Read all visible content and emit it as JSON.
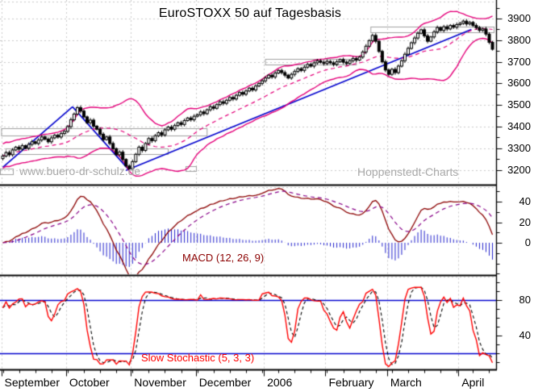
{
  "title": "EuroSTOXX 50 auf Tagesbasis",
  "watermarks": {
    "left": "www.buero-dr-schulz.de",
    "right": "Hoppenstedt-Charts"
  },
  "colors": {
    "band": "#e4007a",
    "trendline": "#0000cd",
    "grid": "#c9c9c9",
    "box_border": "#a0a0a0",
    "candle_up_fill": "#ffffff",
    "candle_down_fill": "#000000",
    "candle_border": "#000000",
    "macd_line": "#8b0000",
    "macd_signal": "#880088",
    "macd_histogram": "#2222cc",
    "stoch_k": "#ff0000",
    "stoch_d": "#000000",
    "stoch_reference": "#0000cd",
    "axis": "#000000",
    "watermark": "#a8a8a8"
  },
  "chart_data": {
    "type": "candlestick",
    "title": "EuroSTOXX 50 auf Tagesbasis",
    "x_axis": {
      "months": [
        {
          "label": "September",
          "day": 0
        },
        {
          "label": "October",
          "day": 20
        },
        {
          "label": "November",
          "day": 40
        },
        {
          "label": "December",
          "day": 60
        },
        {
          "label": "2006",
          "day": 81
        },
        {
          "label": "February",
          "day": 100
        },
        {
          "label": "March",
          "day": 119
        },
        {
          "label": "April",
          "day": 141
        }
      ],
      "minor_tick_every_days": 5
    },
    "price_panel": {
      "y_ticks": [
        3900,
        3800,
        3700,
        3600,
        3500,
        3400,
        3300,
        3200
      ],
      "y_minor_tick_step": 50,
      "grid": "horizontal dashed at each 100, vertical dashed at month starts",
      "close": [
        3264,
        3280,
        3270,
        3292,
        3305,
        3296,
        3312,
        3300,
        3318,
        3330,
        3322,
        3338,
        3352,
        3342,
        3330,
        3348,
        3360,
        3352,
        3368,
        3378,
        3400,
        3432,
        3458,
        3488,
        3472,
        3445,
        3418,
        3430,
        3402,
        3388,
        3365,
        3340,
        3352,
        3322,
        3298,
        3270,
        3282,
        3248,
        3218,
        3205,
        3238,
        3272,
        3305,
        3290,
        3322,
        3345,
        3335,
        3358,
        3372,
        3362,
        3385,
        3398,
        3388,
        3405,
        3418,
        3410,
        3428,
        3440,
        3432,
        3448,
        3455,
        3468,
        3460,
        3478,
        3492,
        3485,
        3502,
        3515,
        3508,
        3522,
        3535,
        3528,
        3545,
        3558,
        3550,
        3565,
        3578,
        3570,
        3588,
        3600,
        3612,
        3625,
        3638,
        3630,
        3648,
        3660,
        3650,
        3638,
        3625,
        3642,
        3655,
        3668,
        3660,
        3675,
        3688,
        3680,
        3695,
        3705,
        3698,
        3692,
        3702,
        3695,
        3688,
        3700,
        3710,
        3698,
        3692,
        3705,
        3715,
        3708,
        3722,
        3745,
        3772,
        3798,
        3822,
        3795,
        3748,
        3700,
        3662,
        3642,
        3665,
        3650,
        3680,
        3705,
        3735,
        3762,
        3788,
        3810,
        3832,
        3848,
        3820,
        3795,
        3815,
        3838,
        3858,
        3845,
        3862,
        3852,
        3868,
        3860,
        3872,
        3878,
        3888,
        3875,
        3882,
        3868,
        3858,
        3845,
        3852,
        3828,
        3790,
        3758
      ],
      "bollinger": {
        "period": 20,
        "num_stdev": 2,
        "middle_style": "dashed"
      },
      "trendlines": [
        {
          "d1": 0,
          "p1": 3212,
          "d2": 21.5,
          "p2": 3492
        },
        {
          "d1": 21.5,
          "p1": 3492,
          "d2": 39,
          "p2": 3198
        },
        {
          "d1": 38,
          "p1": 3198,
          "d2": 144.5,
          "p2": 3850
        }
      ],
      "resistance_boxes": [
        {
          "d1": -0.4,
          "d2": 63,
          "p1": 3360,
          "p2": 3393
        },
        {
          "d1": 1,
          "d2": 51,
          "p1": 3272,
          "p2": 3298
        },
        {
          "d1": 81,
          "d2": 109,
          "p1": 3688,
          "p2": 3715
        },
        {
          "d1": 113.5,
          "d2": 151.5,
          "p1": 3835,
          "p2": 3863
        }
      ]
    },
    "macd_panel": {
      "label": "MACD (12, 26, 9)",
      "params": [
        12,
        26,
        9
      ],
      "y_ticks": [
        40,
        20,
        0
      ],
      "y_minor_tick_step": 10
    },
    "stochastic_panel": {
      "label": "Slow Stochastic (5, 3, 3)",
      "params": [
        5,
        3,
        3
      ],
      "y_ticks": [
        80,
        40
      ],
      "reference_lines": [
        80,
        20
      ],
      "y_minor_tick_step": 10
    }
  }
}
